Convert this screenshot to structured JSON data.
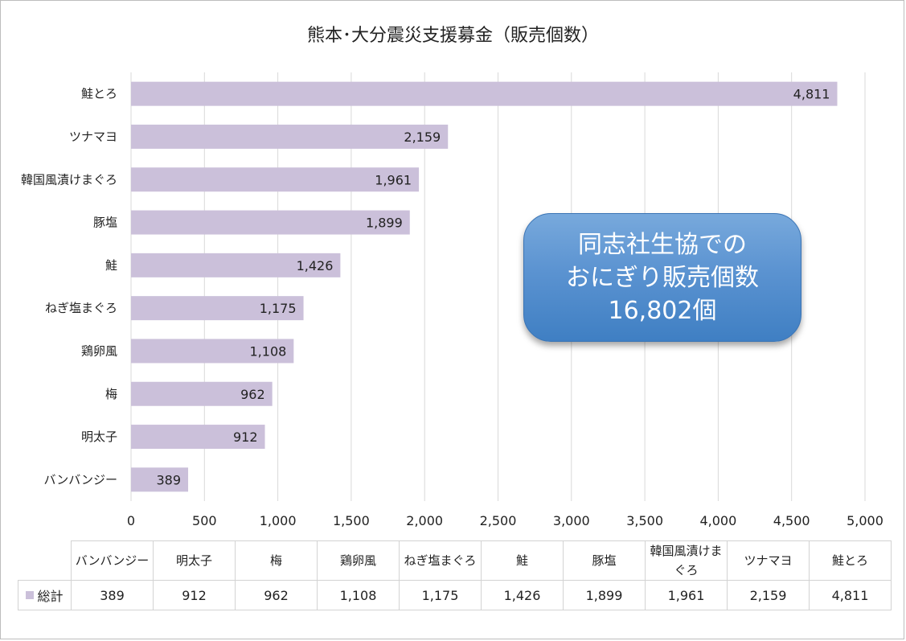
{
  "chart_data": {
    "type": "bar",
    "orientation": "horizontal",
    "title": "熊本･大分震災支援募金（販売個数）",
    "categories": [
      "鮭とろ",
      "ツナマヨ",
      "韓国風漬けまぐろ",
      "豚塩",
      "鮭",
      "ねぎ塩まぐろ",
      "鶏卵風",
      "梅",
      "明太子",
      "バンバンジー"
    ],
    "values": [
      4811,
      2159,
      1961,
      1899,
      1426,
      1175,
      1108,
      962,
      912,
      389
    ],
    "value_labels": [
      "4,811",
      "2,159",
      "1,961",
      "1,899",
      "1,426",
      "1,175",
      "1,108",
      "962",
      "912",
      "389"
    ],
    "series": [
      {
        "name": "総計",
        "values": [
          4811,
          2159,
          1961,
          1899,
          1426,
          1175,
          1108,
          962,
          912,
          389
        ]
      }
    ],
    "xlim": [
      0,
      5000
    ],
    "x_ticks": [
      0,
      500,
      1000,
      1500,
      2000,
      2500,
      3000,
      3500,
      4000,
      4500,
      5000
    ],
    "x_tick_labels": [
      "0",
      "500",
      "1,000",
      "1,500",
      "2,000",
      "2,500",
      "3,000",
      "3,500",
      "4,000",
      "4,500",
      "5,000"
    ],
    "xlabel": "",
    "ylabel": "",
    "grid": "vertical",
    "bar_color": "#cbc0da",
    "data_table": {
      "series_name": "総計",
      "columns": [
        "バンバンジー",
        "明太子",
        "梅",
        "鶏卵風",
        "ねぎ塩まぐろ",
        "鮭",
        "豚塩",
        "韓国風漬けまぐろ",
        "ツナマヨ",
        "鮭とろ"
      ],
      "values": [
        "389",
        "912",
        "962",
        "1,108",
        "1,175",
        "1,426",
        "1,899",
        "1,961",
        "2,159",
        "4,811"
      ]
    },
    "annotation": "同志社生協での\nおにぎり販売個数\n16,802個"
  },
  "colors": {
    "bar": "#cbc0da",
    "grid": "#d9d9d9",
    "callout": "#5b93d1"
  }
}
